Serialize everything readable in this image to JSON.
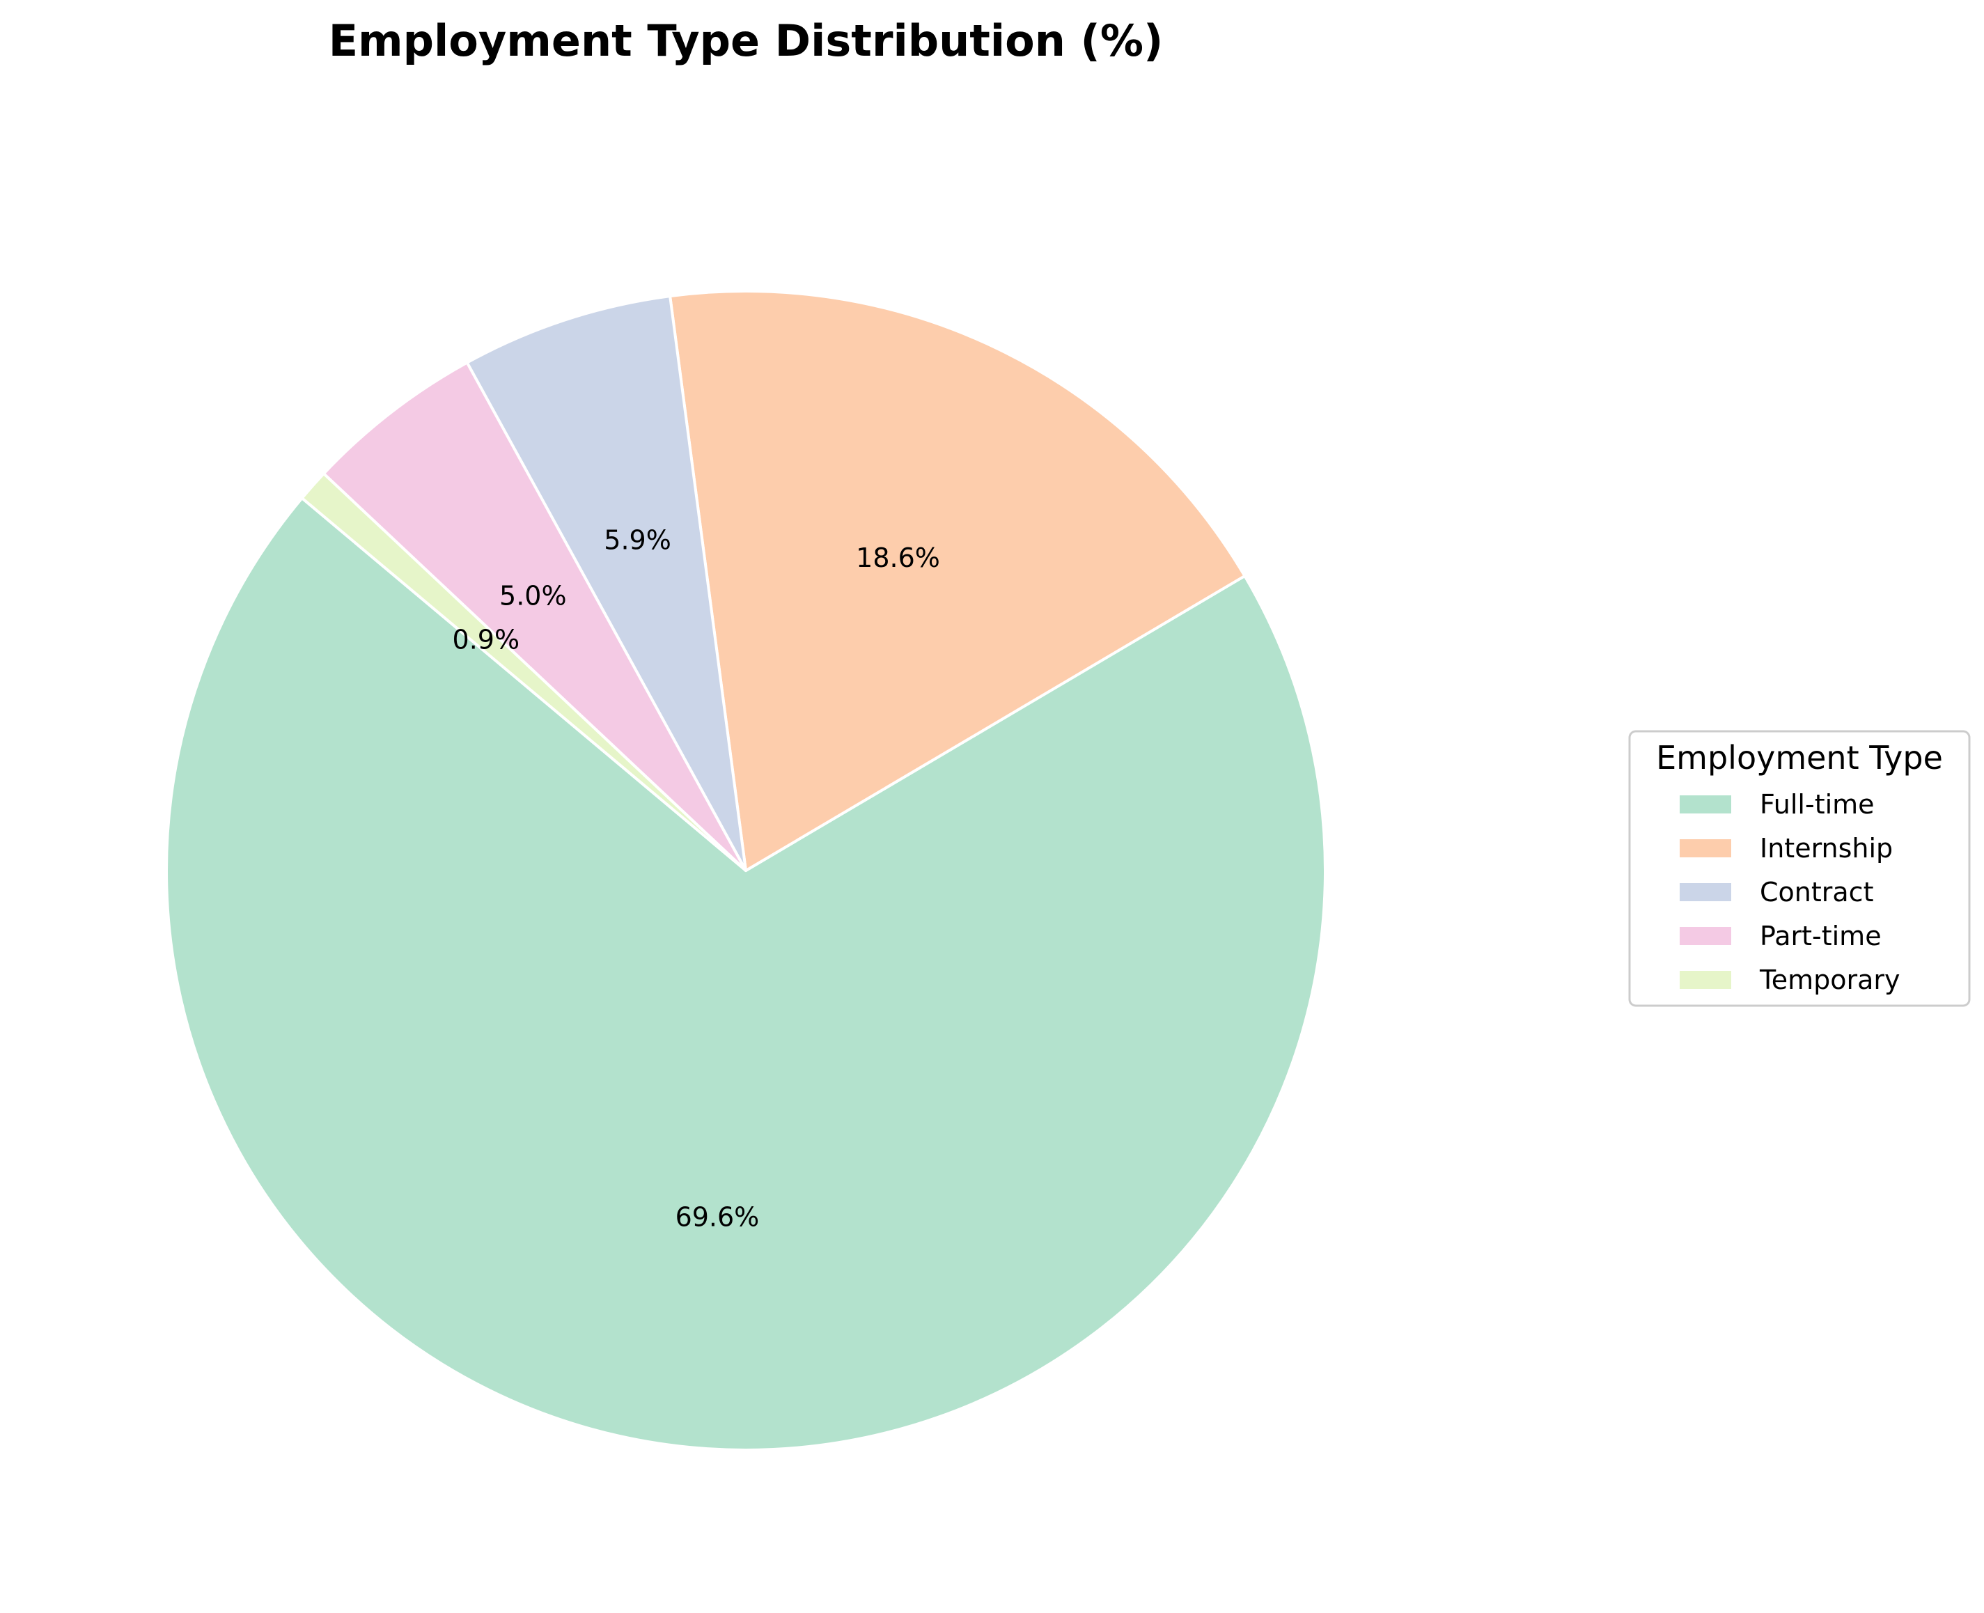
{
  "chart_data": {
    "type": "pie",
    "title": "Employment Type Distribution (%)",
    "legend_title": "Employment Type",
    "legend_position": "right",
    "start_angle_deg": 140,
    "direction": "counterclockwise",
    "slice_edge_color": "#ffffff",
    "slices": [
      {
        "label": "Full-time",
        "value": 69.6,
        "value_label": "69.6%",
        "color": "#b3e2cd"
      },
      {
        "label": "Internship",
        "value": 18.6,
        "value_label": "18.6%",
        "color": "#fdcdac"
      },
      {
        "label": "Contract",
        "value": 5.9,
        "value_label": "5.9%",
        "color": "#cbd5e8"
      },
      {
        "label": "Part-time",
        "value": 5.0,
        "value_label": "5.0%",
        "color": "#f4cae4"
      },
      {
        "label": "Temporary",
        "value": 0.9,
        "value_label": "0.9%",
        "color": "#e6f5c9"
      }
    ]
  }
}
